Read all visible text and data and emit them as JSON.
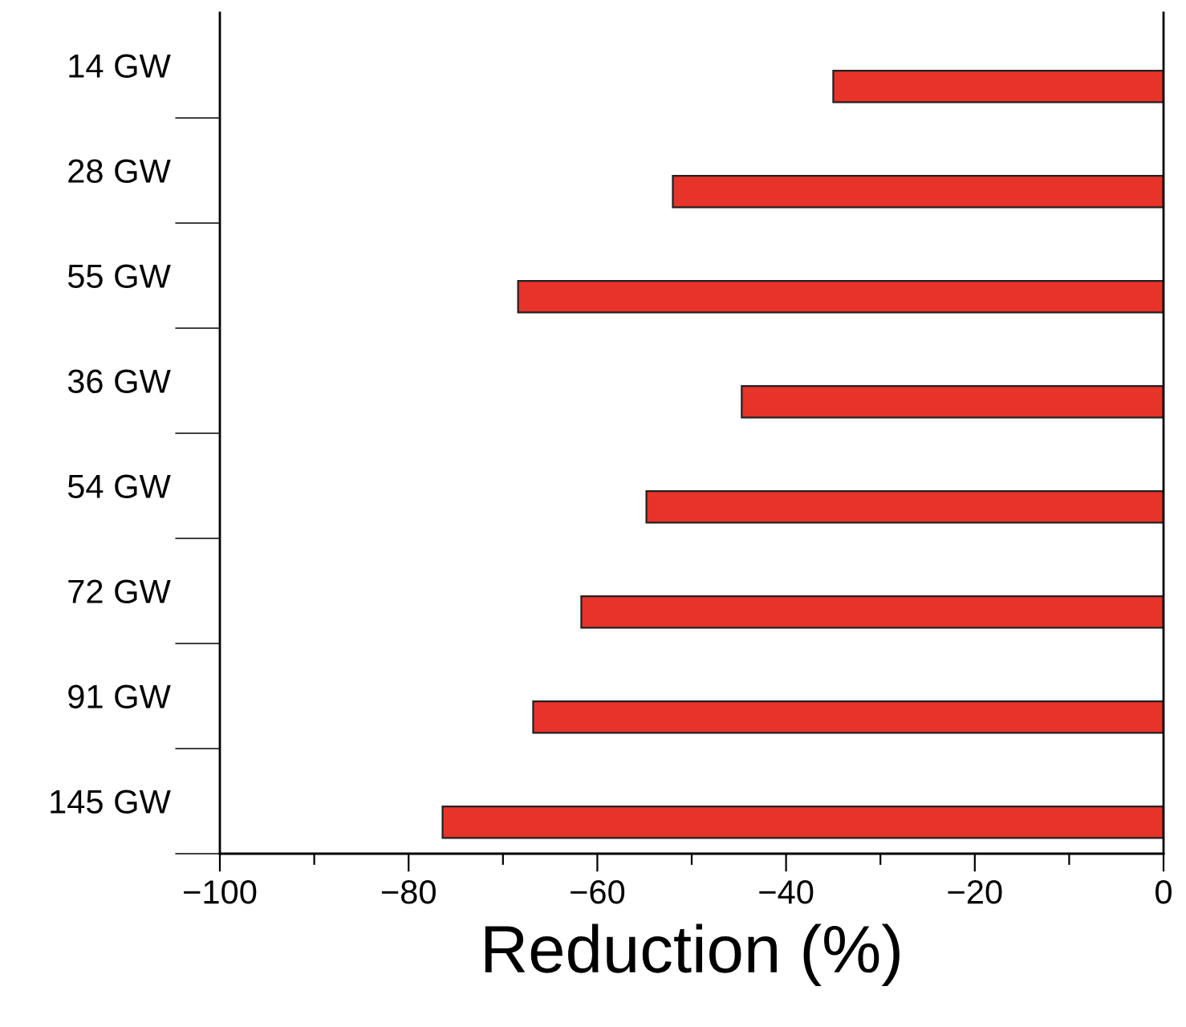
{
  "chart_data": {
    "type": "bar",
    "orientation": "horizontal",
    "xlabel": "Reduction (%)",
    "categories": [
      "14 GW",
      "28 GW",
      "55 GW",
      "36 GW",
      "54 GW",
      "72 GW",
      "91 GW",
      "145 GW"
    ],
    "values": [
      -35.0,
      -52.0,
      -68.4,
      -44.7,
      -54.8,
      -61.7,
      -66.8,
      -76.4
    ],
    "color": "#e8332a",
    "xlim": [
      -100,
      0
    ],
    "xticks": [
      -100,
      {
        "value": -90,
        "label": null
      },
      {
        "value": -80,
        "label": "−80"
      },
      {
        "value": -70,
        "label": null
      },
      {
        "value": -60,
        "label": "−60"
      },
      {
        "value": -50,
        "label": null
      },
      {
        "value": -40,
        "label": "−40"
      },
      {
        "value": -30,
        "label": null
      },
      {
        "value": -20,
        "label": "−20"
      },
      {
        "value": -10,
        "label": null
      },
      0
    ],
    "grid": false,
    "legend": false
  }
}
